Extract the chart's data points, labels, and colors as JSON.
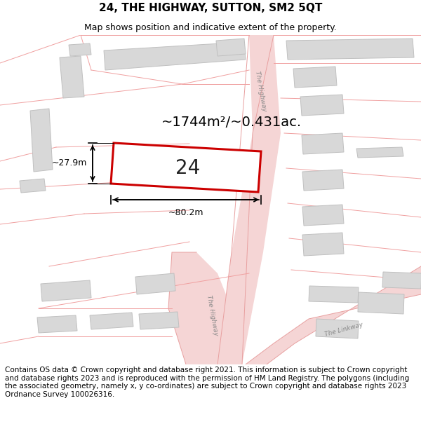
{
  "title": "24, THE HIGHWAY, SUTTON, SM2 5QT",
  "subtitle": "Map shows position and indicative extent of the property.",
  "area_text": "~1744m²/~0.431ac.",
  "plot_label": "24",
  "dim_width": "~80.2m",
  "dim_height": "~27.9m",
  "footer": "Contains OS data © Crown copyright and database right 2021. This information is subject to Crown copyright and database rights 2023 and is reproduced with the permission of HM Land Registry. The polygons (including the associated geometry, namely x, y co-ordinates) are subject to Crown copyright and database rights 2023 Ordnance Survey 100026316.",
  "bg_color": "#ffffff",
  "map_bg": "#ffffff",
  "plot_fill": "#ffffff",
  "plot_edge": "#cc0000",
  "road_color": "#f5d5d5",
  "road_edge": "#e8a0a0",
  "building_fill": "#d8d8d8",
  "building_edge": "#c0c0c0",
  "parcel_edge": "#f0a0a0",
  "dim_color": "#000000",
  "text_color": "#000000",
  "road_label_color": "#888888",
  "title_fontsize": 11,
  "subtitle_fontsize": 9,
  "area_fontsize": 14,
  "plot_label_fontsize": 20,
  "dim_fontsize": 9,
  "road_label_fontsize": 6.5,
  "footer_fontsize": 7.5
}
